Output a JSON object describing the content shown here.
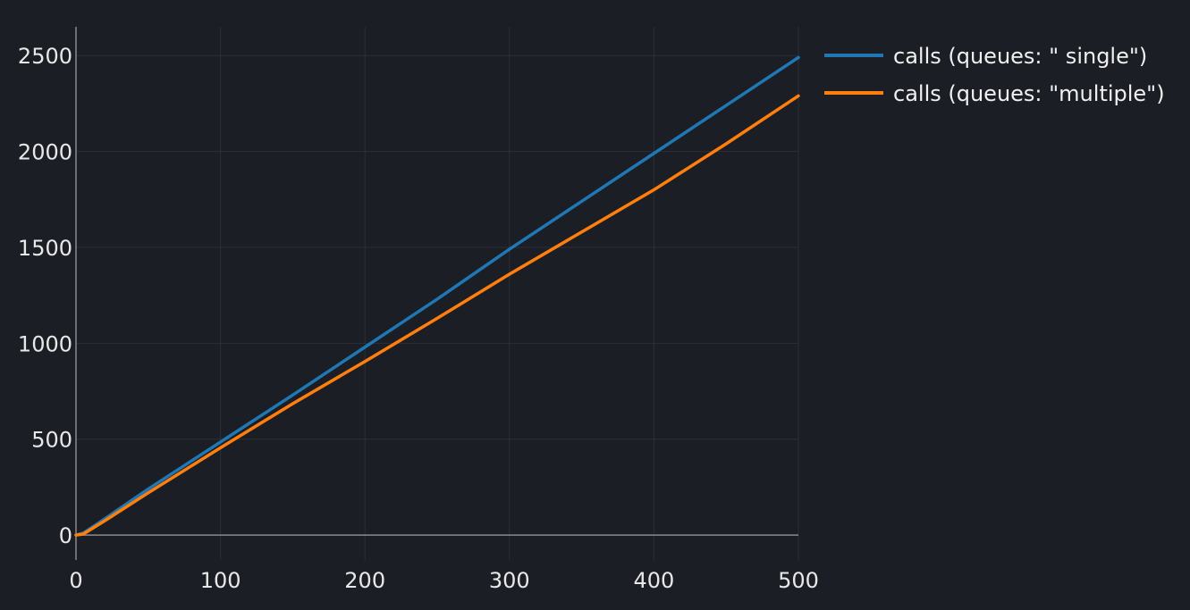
{
  "chart_data": {
    "type": "line",
    "title": "",
    "xlabel": "",
    "ylabel": "",
    "xlim": [
      0,
      500
    ],
    "ylim": [
      -130,
      2650
    ],
    "x_ticks": [
      0,
      100,
      200,
      300,
      400,
      500
    ],
    "y_ticks": [
      0,
      500,
      1000,
      1500,
      2000,
      2500
    ],
    "grid": true,
    "legend_position": "top-right outside",
    "series": [
      {
        "name": "calls (queues: \" single\")",
        "color": "#1f77b4",
        "points": [
          [
            0,
            0
          ],
          [
            5,
            10
          ],
          [
            20,
            85
          ],
          [
            50,
            240
          ],
          [
            100,
            485
          ],
          [
            150,
            730
          ],
          [
            200,
            980
          ],
          [
            250,
            1230
          ],
          [
            300,
            1490
          ],
          [
            350,
            1740
          ],
          [
            400,
            1990
          ],
          [
            450,
            2240
          ],
          [
            500,
            2490
          ]
        ]
      },
      {
        "name": "calls (queues: \"multiple\")",
        "color": "#ff7f0e",
        "points": [
          [
            0,
            0
          ],
          [
            5,
            5
          ],
          [
            20,
            75
          ],
          [
            50,
            220
          ],
          [
            100,
            455
          ],
          [
            150,
            685
          ],
          [
            200,
            905
          ],
          [
            250,
            1130
          ],
          [
            300,
            1360
          ],
          [
            350,
            1580
          ],
          [
            400,
            1800
          ],
          [
            450,
            2040
          ],
          [
            500,
            2290
          ]
        ]
      }
    ]
  },
  "colors": {
    "background": "#1b1e25",
    "axis": "#8a8a8a",
    "grid": "#2b2f36",
    "text": "#e8e8e8"
  }
}
